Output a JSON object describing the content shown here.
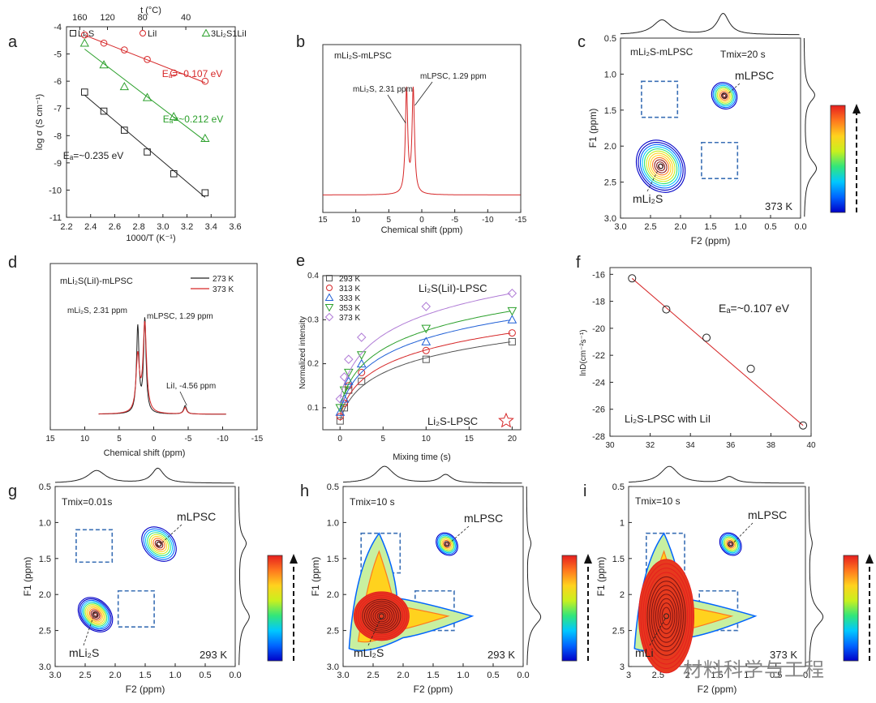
{
  "watermark": "材料科学与工程",
  "colors": {
    "black": "#222222",
    "red": "#d62728",
    "green": "#2ca02c",
    "blue": "#1f5fd6",
    "purple": "#b07cd6",
    "gray": "#555555",
    "dash": "#3a6fb5"
  },
  "chart_data": [
    {
      "panel": "a",
      "type": "scatter",
      "title": "",
      "xlabel": "1000/T (K⁻¹)",
      "ylabel": "log σ (S cm⁻¹)",
      "top_axis_label": "t (°C)",
      "xlim": [
        2.2,
        3.6
      ],
      "ylim": [
        -11,
        -4
      ],
      "xticks": [
        "2.2",
        "2.4",
        "2.6",
        "2.8",
        "3.0",
        "3.2",
        "3.4",
        "3.6"
      ],
      "yticks": [
        "-4",
        "-5",
        "-6",
        "-7",
        "-8",
        "-9",
        "-10",
        "-11"
      ],
      "top_ticks": [
        {
          "label": "160",
          "x": 2.31
        },
        {
          "label": "120",
          "x": 2.54
        },
        {
          "label": "80",
          "x": 2.83
        },
        {
          "label": "40",
          "x": 3.19
        }
      ],
      "legend": [
        "Li₂S",
        "LiI",
        "3Li₂S1LiI"
      ],
      "series": [
        {
          "name": "Li₂S",
          "marker": "square",
          "color": "#222222",
          "x": [
            2.35,
            2.51,
            2.68,
            2.87,
            3.09,
            3.35
          ],
          "y": [
            -6.4,
            -7.1,
            -7.8,
            -8.6,
            -9.4,
            -10.1
          ]
        },
        {
          "name": "LiI",
          "marker": "circle",
          "color": "#d62728",
          "x": [
            2.35,
            2.51,
            2.68,
            2.87,
            3.09,
            3.35
          ],
          "y": [
            -4.3,
            -4.6,
            -4.85,
            -5.2,
            -5.7,
            -6.0
          ]
        },
        {
          "name": "3Li₂S1LiI",
          "marker": "triangle",
          "color": "#2ca02c",
          "x": [
            2.35,
            2.51,
            2.68,
            2.87,
            3.09,
            3.35
          ],
          "y": [
            -4.6,
            -5.4,
            -6.2,
            -6.6,
            -7.3,
            -8.1
          ]
        }
      ],
      "annotations": [
        {
          "series": "LiI",
          "text": "Eₐ=~0.107 eV"
        },
        {
          "series": "3Li₂S1LiI",
          "text": "Eₐ=~0.212 eV"
        },
        {
          "series": "Li₂S",
          "text": "Eₐ=~0.235 eV"
        }
      ]
    },
    {
      "panel": "b",
      "type": "line",
      "title": "mLi₂S-mLPSC",
      "xlabel": "Chemical shift (ppm)",
      "ylabel": "",
      "xlim": [
        15,
        -15
      ],
      "xticks": [
        "15",
        "10",
        "5",
        "0",
        "-5",
        "-10",
        "-15"
      ],
      "peaks": [
        {
          "label": "mLi₂S, 2.31 ppm",
          "ppm": 2.31
        },
        {
          "label": "mLPSC, 1.29 ppm",
          "ppm": 1.29
        }
      ]
    },
    {
      "panel": "c",
      "type": "heatmap",
      "title": "mLi₂S-mLPSC",
      "tmix": "Tmix=20 s",
      "temperature": "373 K",
      "xlabel": "F2 (ppm)",
      "ylabel": "F1 (ppm)",
      "xlim": [
        3.0,
        0.0
      ],
      "ylim": [
        0.5,
        3.0
      ],
      "xticks": [
        "3.0",
        "2.5",
        "2.0",
        "1.5",
        "1.0",
        "0.5",
        "0.0"
      ],
      "yticks": [
        "0.5",
        "1.0",
        "1.5",
        "2.0",
        "2.5",
        "3.0"
      ],
      "labels": [
        "mLPSC",
        "mLi₂S"
      ]
    },
    {
      "panel": "d",
      "type": "line",
      "title": "mLi₂S(LiI)-mLPSC",
      "xlabel": "Chemical shift (ppm)",
      "ylabel": "",
      "xlim": [
        15,
        -15
      ],
      "xticks": [
        "15",
        "10",
        "5",
        "0",
        "-5",
        "-10",
        "-15"
      ],
      "legend": [
        "273 K",
        "373 K"
      ],
      "peaks": [
        {
          "label": "mLi₂S, 2.31 ppm",
          "ppm": 2.31
        },
        {
          "label": "mLPSC, 1.29 ppm",
          "ppm": 1.29
        },
        {
          "label": "LiI, -4.56 ppm",
          "ppm": -4.56
        }
      ]
    },
    {
      "panel": "e",
      "type": "line",
      "title": "Li₂S(LiI)-LPSC",
      "xlabel": "Mixing time (s)",
      "ylabel": "Normalized intensity",
      "xlim": [
        -2,
        21
      ],
      "ylim": [
        0.05,
        0.4
      ],
      "xticks": [
        "0",
        "5",
        "10",
        "15",
        "20"
      ],
      "yticks": [
        "0.1",
        "0.2",
        "0.3",
        "0.4"
      ],
      "x": [
        0.01,
        0.5,
        1,
        2.5,
        10,
        20
      ],
      "series": [
        {
          "name": "293 K",
          "marker": "square",
          "color": "#555555",
          "values": [
            0.07,
            0.1,
            0.14,
            0.16,
            0.21,
            0.25
          ]
        },
        {
          "name": "313 K",
          "marker": "circle",
          "color": "#d62728",
          "values": [
            0.08,
            0.11,
            0.15,
            0.18,
            0.23,
            0.27
          ]
        },
        {
          "name": "333 K",
          "marker": "triangle",
          "color": "#1f5fd6",
          "values": [
            0.09,
            0.12,
            0.16,
            0.2,
            0.25,
            0.3
          ]
        },
        {
          "name": "353 K",
          "marker": "invtriangle",
          "color": "#2ca02c",
          "values": [
            0.1,
            0.14,
            0.18,
            0.22,
            0.28,
            0.32
          ]
        },
        {
          "name": "373 K",
          "marker": "diamond",
          "color": "#b07cd6",
          "values": [
            0.12,
            0.17,
            0.21,
            0.26,
            0.33,
            0.36
          ]
        }
      ],
      "annotation": "Li₂S-LPSC"
    },
    {
      "panel": "f",
      "type": "scatter",
      "xlabel": "",
      "ylabel": "lnD(cm⁻²s⁻¹)",
      "xlim": [
        30,
        40
      ],
      "ylim": [
        -28,
        -15.5
      ],
      "xticks": [
        "30",
        "32",
        "34",
        "36",
        "38",
        "40"
      ],
      "yticks": [
        "-16",
        "-18",
        "-20",
        "-22",
        "-24",
        "-26",
        "-28"
      ],
      "x": [
        31.1,
        32.8,
        34.8,
        37.0,
        39.6
      ],
      "y": [
        -16.3,
        -18.6,
        -20.7,
        -23.0,
        -27.2
      ],
      "annotation": "Eₐ=~0.107 eV",
      "caption": "Li₂S-LPSC with LiI"
    },
    {
      "panel": "g",
      "type": "heatmap",
      "tmix": "Tmix=0.01s",
      "temperature": "293 K",
      "xlabel": "F2 (ppm)",
      "ylabel": "F1 (ppm)",
      "xlim": [
        3.0,
        0.0
      ],
      "ylim": [
        0.5,
        3.0
      ],
      "xticks": [
        "3.0",
        "2.5",
        "2.0",
        "1.5",
        "1.0",
        "0.5",
        "0.0"
      ],
      "yticks": [
        "0.5",
        "1.0",
        "1.5",
        "2.0",
        "2.5",
        "3.0"
      ],
      "labels": [
        "mLPSC",
        "mLi₂S"
      ]
    },
    {
      "panel": "h",
      "type": "heatmap",
      "tmix": "Tmix=10 s",
      "temperature": "293 K",
      "xlabel": "F2 (ppm)",
      "ylabel": "F1 (ppm)",
      "xlim": [
        3.0,
        0.0
      ],
      "ylim": [
        0.5,
        3.0
      ],
      "xticks": [
        "3.0",
        "2.5",
        "2.0",
        "1.5",
        "1.0",
        "0.5",
        "0.0"
      ],
      "yticks": [
        "0.5",
        "1.0",
        "1.5",
        "2.0",
        "2.5",
        "3.0"
      ],
      "labels": [
        "mLPSC",
        "mLi₂S"
      ]
    },
    {
      "panel": "i",
      "type": "heatmap",
      "tmix": "Tmix=10 s",
      "temperature": "373 K",
      "xlabel": "F2 (ppm)",
      "ylabel": "F1 (ppm)",
      "xlim": [
        3.0,
        0.0
      ],
      "ylim": [
        0.5,
        3.0
      ],
      "xticks": [
        "3",
        "2.5",
        "2",
        "1.5",
        "1",
        "0.5",
        "0"
      ],
      "yticks": [
        "0.5",
        "1",
        "1.5",
        "2",
        "2.5",
        "3"
      ],
      "labels": [
        "mLPSC",
        "mLi"
      ]
    }
  ]
}
